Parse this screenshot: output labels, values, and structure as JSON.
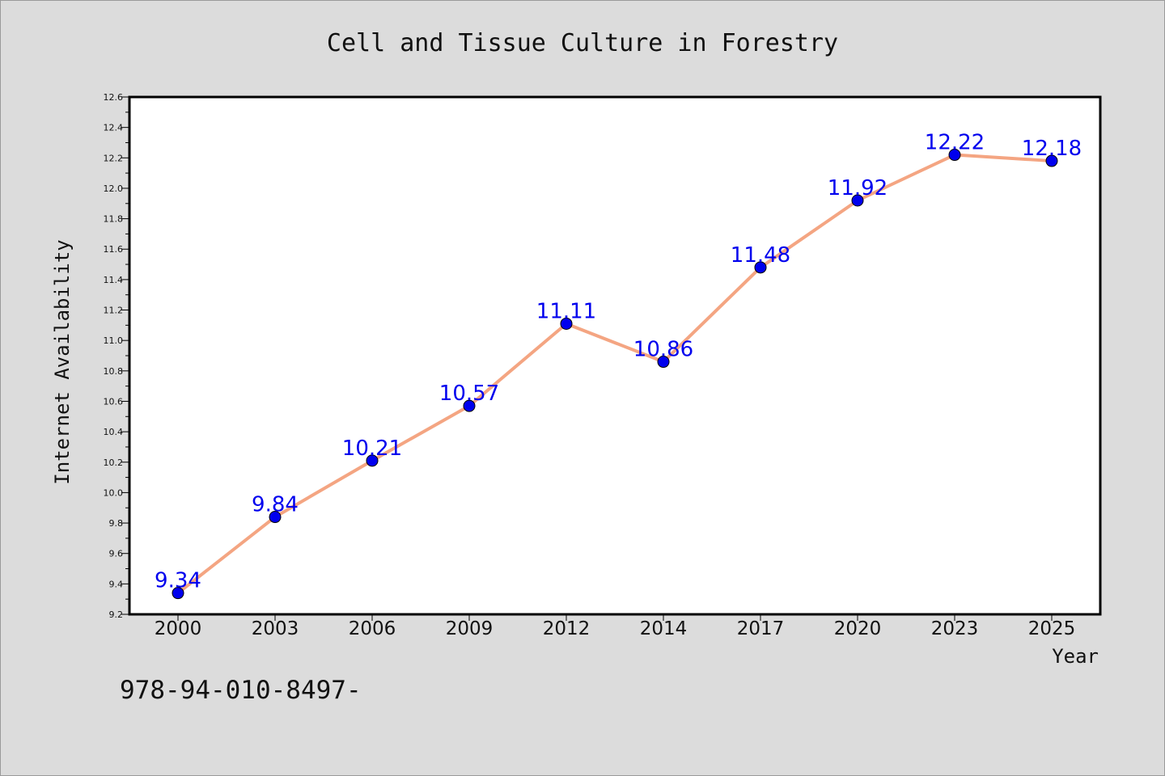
{
  "chart_data": {
    "type": "line",
    "title": "Cell and Tissue Culture in Forestry",
    "xlabel": "Year",
    "ylabel": "Internet Availability",
    "categories": [
      "2000",
      "2003",
      "2006",
      "2009",
      "2012",
      "2014",
      "2017",
      "2020",
      "2023",
      "2025"
    ],
    "series": [
      {
        "values": [
          9.34,
          9.84,
          10.21,
          10.57,
          11.11,
          10.86,
          11.48,
          11.92,
          12.22,
          12.18
        ]
      }
    ],
    "data_labels": [
      "9.34",
      "9.84",
      "10.21",
      "10.57",
      "11.11",
      "10.86",
      "11.48",
      "11.92",
      "12.22",
      "12.18"
    ],
    "ylim": [
      9.2,
      12.6
    ],
    "y_major_ticks": [
      "9.2",
      "9.4",
      "9.6",
      "9.8",
      "10.0",
      "10.2",
      "10.4",
      "10.6",
      "10.8",
      "11.0",
      "11.2",
      "11.4",
      "11.6",
      "11.8",
      "12.0",
      "12.2",
      "12.4",
      "12.6"
    ],
    "grid": false,
    "legend": "none",
    "colors": {
      "line": "#f4a582",
      "marker": "#0000ee",
      "label": "#0000ee",
      "plot_background": "#ffffff",
      "figure_background": "#dcdcdc"
    }
  },
  "footnote": "978-94-010-8497-"
}
